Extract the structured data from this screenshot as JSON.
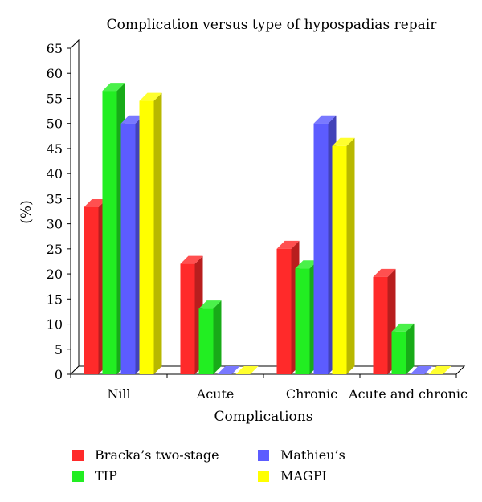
{
  "chart_data": {
    "type": "bar",
    "title": "Complication versus type of hypospadias repair",
    "xlabel": "Complications",
    "ylabel": "(%)",
    "ylim": [
      0,
      65
    ],
    "yticks": [
      0,
      5,
      10,
      15,
      20,
      25,
      30,
      35,
      40,
      45,
      50,
      55,
      60,
      65
    ],
    "categories": [
      "Nill",
      "Acute",
      "Chronic",
      "Acute and chronic"
    ],
    "series": [
      {
        "name": "Bracka’s two-stage",
        "color": "#ff2a2a",
        "values": [
          33.3,
          22,
          25,
          19.4
        ]
      },
      {
        "name": "TIP",
        "color": "#22ee22",
        "values": [
          56.5,
          13.1,
          21.1,
          8.5
        ]
      },
      {
        "name": "Mathieu’s",
        "color": "#5c5cff",
        "values": [
          50,
          0,
          50,
          0
        ]
      },
      {
        "name": "MAGPI",
        "color": "#ffff00",
        "values": [
          54.5,
          0,
          45.5,
          0
        ]
      }
    ],
    "legend_position": "bottom"
  }
}
